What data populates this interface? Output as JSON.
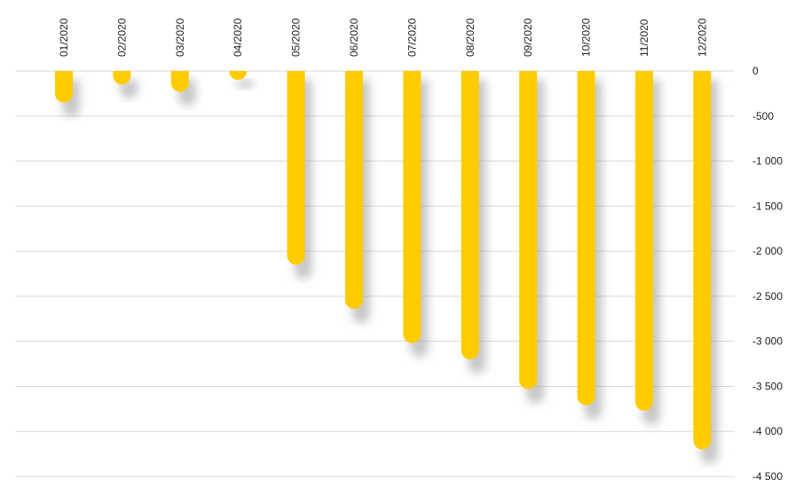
{
  "chart_data": {
    "type": "bar",
    "categories": [
      "01/2020",
      "02/2020",
      "03/2020",
      "04/2020",
      "05/2020",
      "06/2020",
      "07/2020",
      "08/2020",
      "09/2020",
      "10/2020",
      "11/2020",
      "12/2020"
    ],
    "values": [
      -350,
      -150,
      -230,
      -30,
      -2150,
      -2640,
      -3020,
      -3200,
      -3530,
      -3710,
      -3770,
      -4200
    ],
    "ylim": [
      -4500,
      0
    ],
    "yticks": [
      0,
      -500,
      -1000,
      -1500,
      -2000,
      -2500,
      -3000,
      -3500,
      -4000,
      -4500
    ],
    "ytick_labels": [
      "0",
      "-500",
      "-1 000",
      "-1 500",
      "-2 000",
      "-2 500",
      "-3 000",
      "-3 500",
      "-4 000",
      "-4 500"
    ],
    "grid": true,
    "y_axis_position": "right",
    "category_label_position": "top-rotated",
    "bar_color": "#FFCC00",
    "shadow_color": "#9a9a9a",
    "grid_color": "#d9d9d9"
  }
}
